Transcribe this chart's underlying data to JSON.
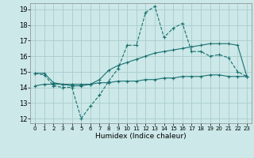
{
  "xlabel": "Humidex (Indice chaleur)",
  "background_color": "#cce8e8",
  "grid_color": "#aacccc",
  "line_color": "#1a7070",
  "xlim": [
    -0.5,
    23.5
  ],
  "ylim": [
    11.7,
    19.4
  ],
  "x": [
    0,
    1,
    2,
    3,
    4,
    5,
    6,
    7,
    8,
    9,
    10,
    11,
    12,
    13,
    14,
    15,
    16,
    17,
    18,
    19,
    20,
    21,
    22,
    23
  ],
  "line1": [
    14.9,
    14.8,
    14.1,
    14.0,
    14.0,
    12.0,
    12.8,
    13.5,
    14.4,
    15.2,
    16.7,
    16.7,
    18.8,
    19.2,
    17.2,
    17.8,
    18.1,
    16.3,
    16.3,
    16.0,
    16.1,
    15.9,
    15.0,
    14.7
  ],
  "line2": [
    14.9,
    14.9,
    14.3,
    14.2,
    14.1,
    14.1,
    14.2,
    14.5,
    15.1,
    15.4,
    15.6,
    15.8,
    16.0,
    16.2,
    16.3,
    16.4,
    16.5,
    16.6,
    16.7,
    16.8,
    16.8,
    16.8,
    16.7,
    14.7
  ],
  "line3": [
    14.1,
    14.2,
    14.2,
    14.2,
    14.2,
    14.2,
    14.2,
    14.3,
    14.3,
    14.4,
    14.4,
    14.4,
    14.5,
    14.5,
    14.6,
    14.6,
    14.7,
    14.7,
    14.7,
    14.8,
    14.8,
    14.7,
    14.7,
    14.7
  ]
}
